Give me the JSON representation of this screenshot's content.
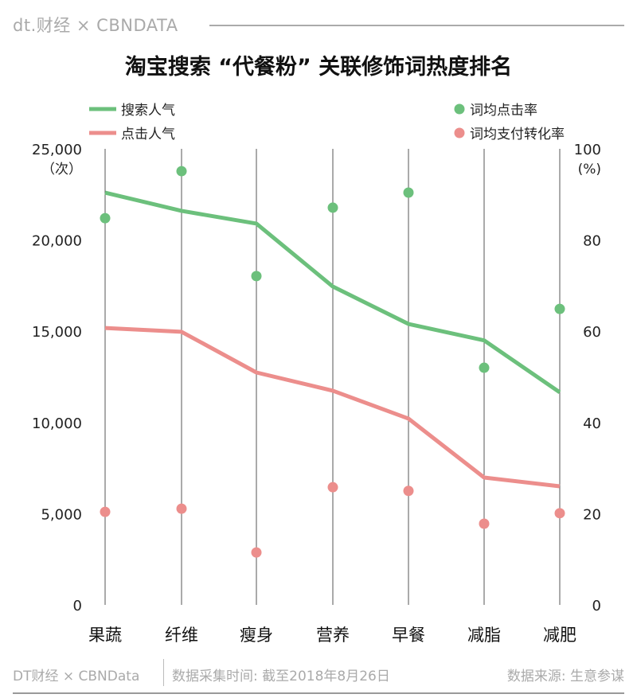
{
  "header": {
    "brand": "dt.财经 × CBNDATA"
  },
  "footer": {
    "left": "DT财经 × CBNData",
    "middle": "数据采集时间: 截至2018年8月26日",
    "right": "数据来源: 生意参谋"
  },
  "colors": {
    "green": "#6cc07c",
    "pink": "#ec8e8c",
    "grid": "#555555"
  },
  "chart_data": {
    "type": "line",
    "title": "淘宝搜索 “代餐粉” 关联修饰词热度排名",
    "categories": [
      "果蔬",
      "纤维",
      "瘦身",
      "营养",
      "早餐",
      "减脂",
      "减肥"
    ],
    "left_axis": {
      "unit": "（次）",
      "range": [
        0,
        25000
      ],
      "ticks": [
        "0",
        "5,000",
        "10,000",
        "15,000",
        "20,000",
        "25,000"
      ]
    },
    "right_axis": {
      "unit": "(%)",
      "range": [
        0,
        100
      ],
      "ticks": [
        "0",
        "20",
        "40",
        "60",
        "80",
        "100"
      ]
    },
    "series": [
      {
        "name": "搜索人气",
        "kind": "line",
        "axis": "left",
        "color": "#6cc07c",
        "values": [
          22600,
          21600,
          20900,
          17450,
          15400,
          14500,
          11650
        ]
      },
      {
        "name": "点击人气",
        "kind": "line",
        "axis": "left",
        "color": "#ec8e8c",
        "values": [
          15180,
          14970,
          12740,
          11740,
          10210,
          6980,
          6500
        ]
      },
      {
        "name": "词均点击率",
        "kind": "scatter",
        "axis": "right",
        "color": "#6cc07c",
        "values": [
          84.8,
          95.1,
          72.1,
          87.1,
          90.4,
          52.0,
          64.9
        ]
      },
      {
        "name": "词均支付转化率",
        "kind": "scatter",
        "axis": "right",
        "color": "#ec8e8c",
        "values": [
          20.4,
          21.1,
          11.5,
          25.8,
          25.0,
          17.8,
          20.1
        ]
      }
    ],
    "legend": "top"
  }
}
